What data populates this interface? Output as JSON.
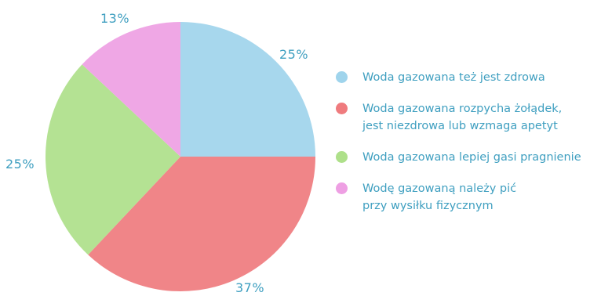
{
  "colors": {
    "label_text": "#3f9fc0",
    "blue": "#9fd4ec",
    "red": "#ef7b7e",
    "green": "#aee08a",
    "pink": "#ee9fe3"
  },
  "chart_data": {
    "type": "pie",
    "title": "",
    "slices": [
      {
        "label_text": "25%",
        "value": 25,
        "color": "#9fd4ec",
        "legend": "Woda gazowana też jest zdrowa"
      },
      {
        "label_text": "37%",
        "value": 37,
        "color": "#ef7b7e",
        "legend": "Woda gazowana rozpycha żołądek, jest niezdrowa lub wzmaga apetyt"
      },
      {
        "label_text": "25%",
        "value": 25,
        "color": "#aee08a",
        "legend": "Woda gazowana lepiej gasi pragnienie"
      },
      {
        "label_text": "13%",
        "value": 13,
        "color": "#ee9fe3",
        "legend": "Wodę gazowaną należy pić przy wysiłku fizycznym"
      }
    ],
    "legend_position": "right"
  },
  "legend": {
    "items": [
      {
        "lines": [
          "Woda gazowana też jest zdrowa"
        ]
      },
      {
        "lines": [
          "Woda gazowana rozpycha żołądek,",
          "jest niezdrowa lub wzmaga apetyt"
        ]
      },
      {
        "lines": [
          "Woda gazowana lepiej gasi pragnienie"
        ]
      },
      {
        "lines": [
          "Wodę gazowaną należy pić",
          "przy wysiłku fizycznym"
        ]
      }
    ]
  }
}
